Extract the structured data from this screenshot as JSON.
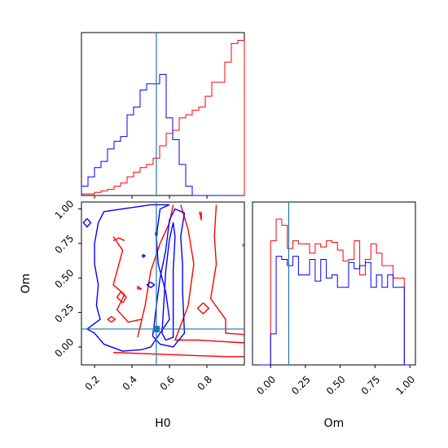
{
  "chart_data": {
    "type": "corner",
    "colors": {
      "red": "#ff0000",
      "blue": "#0000ff",
      "truth": "#1f77b4",
      "axis": "#000000"
    },
    "parameters": [
      "H0",
      "Om"
    ],
    "axis_labels": {
      "x_bottom_left": "H0",
      "x_bottom_right": "Om",
      "y_left": "Om"
    },
    "truth": {
      "H0": 0.53,
      "Om": 0.13
    },
    "panels": [
      {
        "id": "hist-H0",
        "type": "histogram",
        "xlim": [
          0.13,
          1.0
        ],
        "bin_edges": [
          0.13,
          0.1648,
          0.1996,
          0.2344,
          0.2692,
          0.304,
          0.3388,
          0.3736,
          0.4084,
          0.4432,
          0.478,
          0.5128,
          0.5476,
          0.5824,
          0.6172,
          0.652,
          0.6868,
          0.7216,
          0.7564,
          0.7912,
          0.826,
          0.8608,
          0.8956,
          0.9304,
          0.9652,
          1.0
        ],
        "series": [
          {
            "name": "red",
            "values": [
              0.01,
              0.01,
              0.02,
              0.03,
              0.04,
              0.06,
              0.08,
              0.12,
              0.15,
              0.18,
              0.2,
              0.24,
              0.32,
              0.4,
              0.42,
              0.5,
              0.52,
              0.55,
              0.57,
              0.64,
              0.73,
              0.73,
              0.86,
              0.98,
              1.0
            ]
          },
          {
            "name": "blue",
            "values": [
              0.06,
              0.12,
              0.18,
              0.22,
              0.3,
              0.35,
              0.38,
              0.52,
              0.57,
              0.68,
              0.72,
              0.72,
              0.78,
              0.5,
              0.36,
              0.2,
              0.06,
              0.0,
              0.0,
              0.0,
              0.0,
              0.0,
              0.0,
              0.0,
              0.0
            ]
          }
        ],
        "xticks": [
          0.2,
          0.4,
          0.6,
          0.8
        ]
      },
      {
        "id": "hist-Om",
        "type": "histogram",
        "xlim": [
          -0.13,
          1.04
        ],
        "bin_edges": [
          -0.08,
          -0.04,
          0.0,
          0.04,
          0.08,
          0.12,
          0.16,
          0.2,
          0.24,
          0.28,
          0.32,
          0.36,
          0.4,
          0.44,
          0.48,
          0.52,
          0.56,
          0.6,
          0.64,
          0.68,
          0.72,
          0.76,
          0.8,
          0.84,
          0.88,
          0.92,
          0.96,
          1.0
        ],
        "series": [
          {
            "name": "red",
            "values": [
              0.0,
              0.0,
              0.8,
              0.94,
              0.9,
              0.75,
              0.8,
              0.78,
              0.78,
              0.72,
              0.78,
              0.76,
              0.8,
              0.79,
              0.74,
              0.67,
              0.68,
              0.8,
              0.58,
              0.68,
              0.78,
              0.72,
              0.64,
              0.64,
              0.56,
              0.56,
              0.0
            ]
          },
          {
            "name": "blue",
            "values": [
              0.0,
              0.0,
              0.2,
              0.7,
              0.68,
              0.64,
              0.7,
              0.58,
              0.58,
              0.68,
              0.54,
              0.68,
              0.56,
              0.58,
              0.5,
              0.5,
              0.66,
              0.62,
              0.64,
              0.66,
              0.5,
              0.58,
              0.5,
              0.58,
              0.5,
              0.5,
              0.0
            ]
          }
        ],
        "xticks": [
          0.0,
          0.25,
          0.5,
          0.75,
          1.0
        ],
        "xtick_labels": [
          "0.00",
          "0.25",
          "0.50",
          "0.75",
          "1.00"
        ]
      },
      {
        "id": "contour-H0-Om",
        "type": "contour",
        "xlim": [
          0.13,
          1.0
        ],
        "ylim": [
          -0.13,
          1.05
        ],
        "xticks": [
          0.2,
          0.4,
          0.6,
          0.8
        ],
        "xtick_labels": [
          "0.2",
          "0.4",
          "0.6",
          "0.8"
        ],
        "yticks": [
          0.0,
          0.25,
          0.5,
          0.75,
          1.0
        ],
        "ytick_labels": [
          "0.00",
          "0.25",
          "0.50",
          "0.75",
          "1.00"
        ],
        "contours": [
          {
            "series": "red",
            "points": [
              [
                0.3,
                -0.04
              ],
              [
                0.5,
                -0.05
              ],
              [
                0.7,
                -0.06
              ],
              [
                0.9,
                -0.07
              ],
              [
                1.0,
                -0.07
              ]
            ]
          },
          {
            "series": "red",
            "points": [
              [
                0.43,
                0.07
              ],
              [
                0.47,
                0.3
              ],
              [
                0.5,
                0.55
              ],
              [
                0.55,
                0.75
              ],
              [
                0.6,
                0.9
              ],
              [
                0.62,
                1.03
              ]
            ]
          },
          {
            "series": "red",
            "points": [
              [
                0.66,
                1.03
              ],
              [
                0.7,
                0.85
              ],
              [
                0.73,
                0.6
              ],
              [
                0.7,
                0.3
              ],
              [
                0.63,
                0.05
              ],
              [
                0.75,
                0.05
              ],
              [
                1.0,
                0.03
              ]
            ]
          },
          {
            "series": "red",
            "points": [
              [
                0.85,
                1.03
              ],
              [
                0.84,
                0.8
              ],
              [
                0.85,
                0.6
              ],
              [
                0.82,
                0.35
              ],
              [
                0.9,
                0.2
              ],
              [
                0.9,
                0.1
              ],
              [
                1.0,
                0.09
              ]
            ]
          },
          {
            "series": "red",
            "points": [
              [
                0.3,
                0.8
              ],
              [
                0.35,
                0.7
              ],
              [
                0.32,
                0.55
              ],
              [
                0.3,
                0.45
              ],
              [
                0.36,
                0.38
              ],
              [
                0.32,
                0.27
              ],
              [
                0.38,
                0.18
              ],
              [
                0.45,
                0.2
              ]
            ]
          },
          {
            "series": "red",
            "points": [
              [
                0.29,
                0.18
              ],
              [
                0.31,
                0.2
              ],
              [
                0.29,
                0.22
              ],
              [
                0.27,
                0.2
              ],
              [
                0.29,
                0.18
              ]
            ]
          },
          {
            "series": "red",
            "points": [
              [
                0.35,
                0.32
              ],
              [
                0.37,
                0.36
              ],
              [
                0.34,
                0.4
              ],
              [
                0.32,
                0.36
              ],
              [
                0.35,
                0.32
              ]
            ]
          },
          {
            "series": "red",
            "points": [
              [
                0.78,
                0.32
              ],
              [
                0.81,
                0.28
              ],
              [
                0.78,
                0.24
              ],
              [
                0.75,
                0.28
              ],
              [
                0.78,
                0.32
              ]
            ]
          },
          {
            "series": "red",
            "points": [
              [
                0.3,
                0.77
              ],
              [
                0.33,
                0.79
              ],
              [
                0.36,
                0.77
              ]
            ]
          },
          {
            "series": "red",
            "points": [
              [
                0.76,
                0.98
              ],
              [
                0.77,
                0.92
              ],
              [
                0.77,
                0.98
              ]
            ]
          },
          {
            "series": "red",
            "points": [
              [
                0.99,
                0.73
              ],
              [
                1.0,
                0.75
              ]
            ]
          },
          {
            "series": "red",
            "points": [
              [
                0.43,
                0.44
              ],
              [
                0.45,
                0.42
              ],
              [
                0.43,
                0.42
              ],
              [
                0.43,
                0.44
              ]
            ]
          },
          {
            "series": "blue",
            "points": [
              [
                0.16,
                0.13
              ],
              [
                0.2,
                0.1
              ],
              [
                0.25,
                0.02
              ],
              [
                0.35,
                -0.03
              ],
              [
                0.45,
                -0.02
              ],
              [
                0.5,
                0.0
              ],
              [
                0.55,
                0.1
              ],
              [
                0.6,
                0.2
              ],
              [
                0.58,
                0.4
              ],
              [
                0.54,
                0.6
              ],
              [
                0.53,
                0.8
              ],
              [
                0.55,
                1.0
              ],
              [
                0.6,
                1.03
              ],
              [
                0.6,
                1.03
              ]
            ]
          },
          {
            "series": "blue",
            "points": [
              [
                0.16,
                0.13
              ],
              [
                0.23,
                0.2
              ],
              [
                0.21,
                0.3
              ],
              [
                0.22,
                0.45
              ],
              [
                0.2,
                0.6
              ],
              [
                0.2,
                0.75
              ],
              [
                0.22,
                0.9
              ],
              [
                0.25,
                0.98
              ],
              [
                0.35,
                1.0
              ],
              [
                0.5,
                1.03
              ],
              [
                0.6,
                1.03
              ]
            ]
          },
          {
            "series": "blue",
            "points": [
              [
                0.51,
                0.08
              ],
              [
                0.55,
                0.02
              ],
              [
                0.62,
                0.0
              ],
              [
                0.68,
                0.1
              ],
              [
                0.67,
                0.4
              ],
              [
                0.67,
                0.6
              ],
              [
                0.66,
                0.8
              ],
              [
                0.68,
                0.97
              ],
              [
                0.63,
                1.0
              ],
              [
                0.6,
                0.92
              ],
              [
                0.58,
                0.7
              ],
              [
                0.55,
                0.5
              ],
              [
                0.53,
                0.3
              ],
              [
                0.52,
                0.18
              ],
              [
                0.51,
                0.08
              ]
            ]
          },
          {
            "series": "blue",
            "points": [
              [
                0.56,
                0.1
              ],
              [
                0.58,
                0.05
              ],
              [
                0.62,
                0.07
              ],
              [
                0.62,
                0.3
              ],
              [
                0.62,
                0.55
              ],
              [
                0.63,
                0.8
              ],
              [
                0.62,
                0.9
              ],
              [
                0.6,
                0.78
              ],
              [
                0.58,
                0.55
              ],
              [
                0.57,
                0.32
              ],
              [
                0.56,
                0.1
              ]
            ]
          },
          {
            "series": "blue",
            "points": [
              [
                0.16,
                0.93
              ],
              [
                0.18,
                0.9
              ],
              [
                0.16,
                0.87
              ],
              [
                0.14,
                0.9
              ],
              [
                0.16,
                0.93
              ]
            ]
          },
          {
            "series": "blue",
            "points": [
              [
                0.5,
                0.47
              ],
              [
                0.52,
                0.45
              ],
              [
                0.5,
                0.43
              ],
              [
                0.48,
                0.45
              ],
              [
                0.5,
                0.47
              ]
            ]
          },
          {
            "series": "blue",
            "points": [
              [
                0.53,
                0.84
              ],
              [
                0.535,
                0.82
              ],
              [
                0.53,
                0.8
              ],
              [
                0.525,
                0.82
              ],
              [
                0.53,
                0.84
              ]
            ]
          },
          {
            "series": "blue",
            "points": [
              [
                0.46,
                0.67
              ],
              [
                0.47,
                0.66
              ],
              [
                0.46,
                0.65
              ],
              [
                0.455,
                0.66
              ],
              [
                0.46,
                0.67
              ]
            ]
          }
        ]
      }
    ]
  }
}
